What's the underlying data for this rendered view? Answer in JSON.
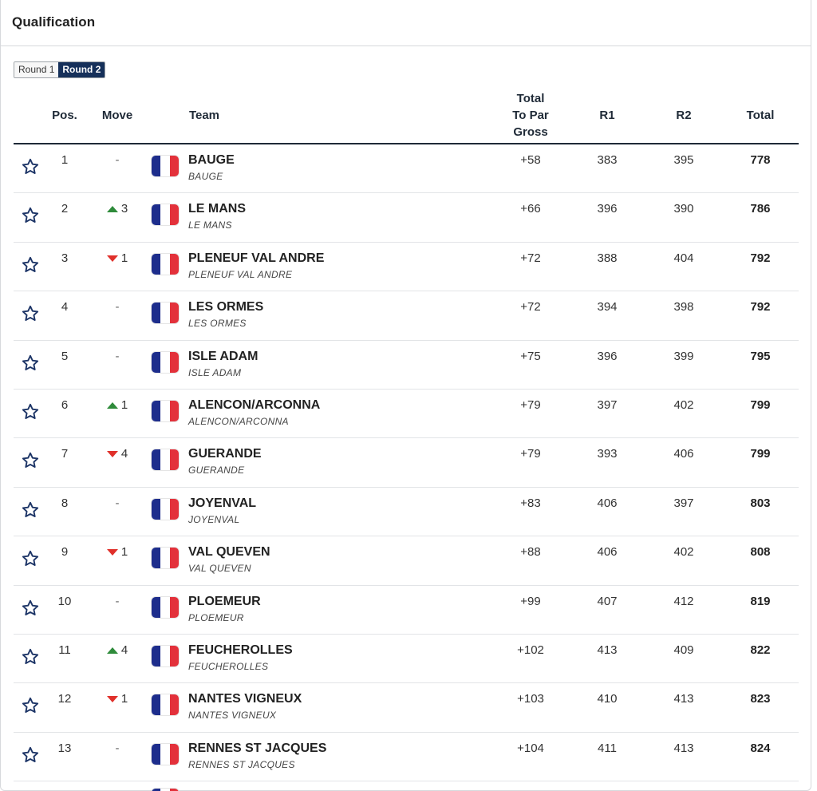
{
  "panel": {
    "title": "Qualification"
  },
  "rounds": {
    "tabs": [
      "Round 1",
      "Round 2"
    ],
    "active": "Round 2"
  },
  "table": {
    "headers": {
      "pos": "Pos.",
      "move": "Move",
      "team": "Team",
      "topar_line1": "Total",
      "topar_line2": "To Par",
      "topar_line3": "Gross",
      "r1": "R1",
      "r2": "R2",
      "total": "Total"
    },
    "rows": [
      {
        "pos": "1",
        "move_dir": "none",
        "move": "-",
        "team": "BAUGE",
        "sub": "BAUGE",
        "topar": "+58",
        "r1": "383",
        "r2": "395",
        "total": "778"
      },
      {
        "pos": "2",
        "move_dir": "up",
        "move": "3",
        "team": "LE MANS",
        "sub": "LE MANS",
        "topar": "+66",
        "r1": "396",
        "r2": "390",
        "total": "786"
      },
      {
        "pos": "3",
        "move_dir": "down",
        "move": "1",
        "team": "PLENEUF VAL ANDRE",
        "sub": "PLENEUF VAL ANDRE",
        "topar": "+72",
        "r1": "388",
        "r2": "404",
        "total": "792"
      },
      {
        "pos": "4",
        "move_dir": "none",
        "move": "-",
        "team": "LES ORMES",
        "sub": "LES ORMES",
        "topar": "+72",
        "r1": "394",
        "r2": "398",
        "total": "792"
      },
      {
        "pos": "5",
        "move_dir": "none",
        "move": "-",
        "team": "ISLE ADAM",
        "sub": "ISLE ADAM",
        "topar": "+75",
        "r1": "396",
        "r2": "399",
        "total": "795"
      },
      {
        "pos": "6",
        "move_dir": "up",
        "move": "1",
        "team": "ALENCON/ARCONNA",
        "sub": "ALENCON/ARCONNA",
        "topar": "+79",
        "r1": "397",
        "r2": "402",
        "total": "799"
      },
      {
        "pos": "7",
        "move_dir": "down",
        "move": "4",
        "team": "GUERANDE",
        "sub": "GUERANDE",
        "topar": "+79",
        "r1": "393",
        "r2": "406",
        "total": "799"
      },
      {
        "pos": "8",
        "move_dir": "none",
        "move": "-",
        "team": "JOYENVAL",
        "sub": "JOYENVAL",
        "topar": "+83",
        "r1": "406",
        "r2": "397",
        "total": "803"
      },
      {
        "pos": "9",
        "move_dir": "down",
        "move": "1",
        "team": "VAL QUEVEN",
        "sub": "VAL QUEVEN",
        "topar": "+88",
        "r1": "406",
        "r2": "402",
        "total": "808"
      },
      {
        "pos": "10",
        "move_dir": "none",
        "move": "-",
        "team": "PLOEMEUR",
        "sub": "PLOEMEUR",
        "topar": "+99",
        "r1": "407",
        "r2": "412",
        "total": "819"
      },
      {
        "pos": "11",
        "move_dir": "up",
        "move": "4",
        "team": "FEUCHEROLLES",
        "sub": "FEUCHEROLLES",
        "topar": "+102",
        "r1": "413",
        "r2": "409",
        "total": "822"
      },
      {
        "pos": "12",
        "move_dir": "down",
        "move": "1",
        "team": "NANTES VIGNEUX",
        "sub": "NANTES VIGNEUX",
        "topar": "+103",
        "r1": "410",
        "r2": "413",
        "total": "823"
      },
      {
        "pos": "13",
        "move_dir": "none",
        "move": "-",
        "team": "RENNES ST JACQUES",
        "sub": "RENNES ST JACQUES",
        "topar": "+104",
        "r1": "411",
        "r2": "413",
        "total": "824"
      }
    ]
  },
  "colors": {
    "accent": "#16305a",
    "move_up": "#2e8b3a",
    "move_down": "#e0302a",
    "flag_blue": "#1d2d8c",
    "flag_red": "#e3313b"
  },
  "icons": {
    "favorite": "star-outline-icon",
    "move_up": "triangle-up-icon",
    "move_down": "triangle-down-icon",
    "country": "france-flag-icon"
  }
}
